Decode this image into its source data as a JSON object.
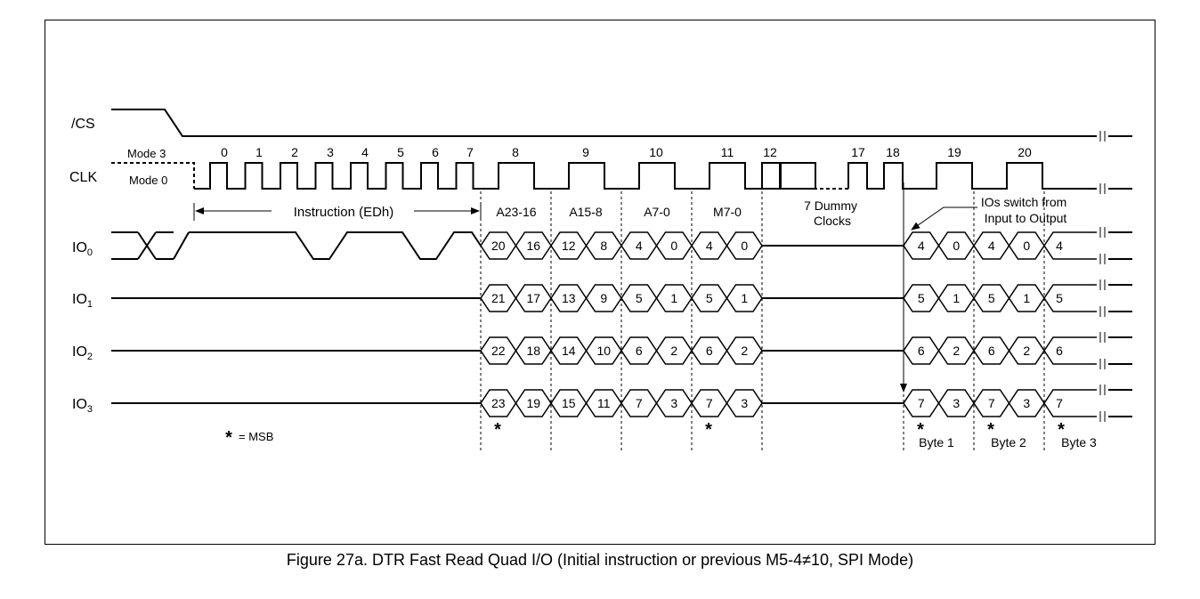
{
  "signals": {
    "cs": "/CS",
    "clk": "CLK",
    "io0": {
      "base": "IO",
      "sub": "0"
    },
    "io1": {
      "base": "IO",
      "sub": "1"
    },
    "io2": {
      "base": "IO",
      "sub": "2"
    },
    "io3": {
      "base": "IO",
      "sub": "3"
    }
  },
  "modes": {
    "mode3": "Mode 3",
    "mode0": "Mode 0"
  },
  "clock_numbers": [
    "0",
    "1",
    "2",
    "3",
    "4",
    "5",
    "6",
    "7",
    "8",
    "9",
    "10",
    "11",
    "12",
    "17",
    "18",
    "19",
    "20"
  ],
  "instruction_label": "Instruction (EDh)",
  "phase_labels": [
    "A23-16",
    "A15-8",
    "A7-0",
    "M7-0"
  ],
  "dummy_label": [
    "7 Dummy",
    "Clocks"
  ],
  "switch_label": [
    "IOs switch from",
    "Input to Output"
  ],
  "io_data": {
    "io0": {
      "addr": [
        "20",
        "16",
        "12",
        "8",
        "4",
        "0",
        "4",
        "0"
      ],
      "out": [
        "4",
        "0",
        "4",
        "0",
        "4"
      ]
    },
    "io1": {
      "addr": [
        "21",
        "17",
        "13",
        "9",
        "5",
        "1",
        "5",
        "1"
      ],
      "out": [
        "5",
        "1",
        "5",
        "1",
        "5"
      ]
    },
    "io2": {
      "addr": [
        "22",
        "18",
        "14",
        "10",
        "6",
        "2",
        "6",
        "2"
      ],
      "out": [
        "6",
        "2",
        "6",
        "2",
        "6"
      ]
    },
    "io3": {
      "addr": [
        "23",
        "19",
        "15",
        "11",
        "7",
        "3",
        "7",
        "3"
      ],
      "out": [
        "7",
        "3",
        "7",
        "3",
        "7"
      ]
    }
  },
  "msb_legend": {
    "star": "*",
    "text": "= MSB"
  },
  "bytes": [
    "Byte 1",
    "Byte 2",
    "Byte 3"
  ],
  "caption": "Figure 27a. DTR Fast Read Quad I/O (Initial instruction or previous M5-4≠10, SPI Mode)"
}
